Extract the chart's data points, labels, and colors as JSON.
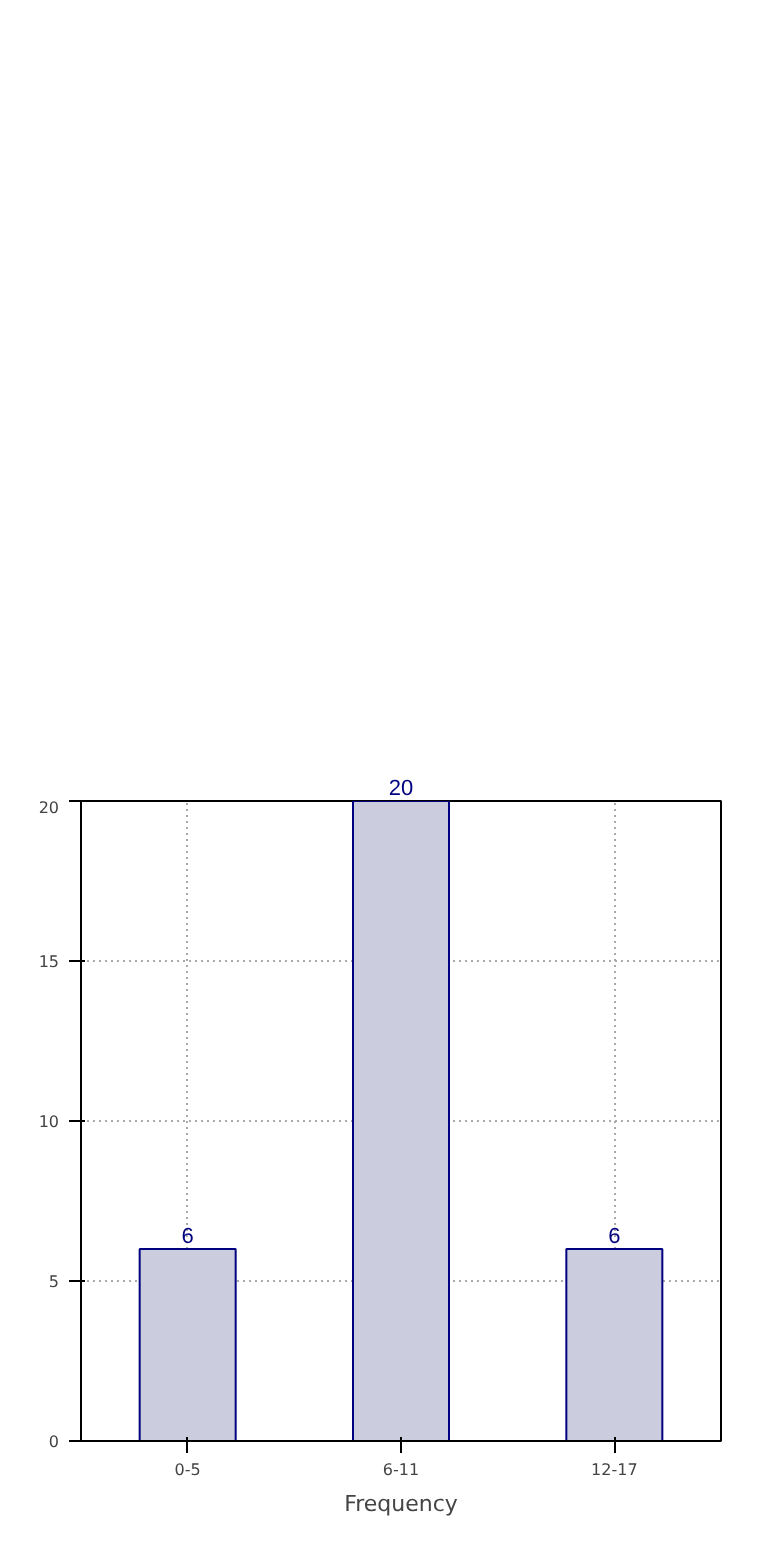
{
  "chart_data": {
    "type": "bar",
    "xlabel": "Frequency",
    "categories": [
      "0-5",
      "6-11",
      "12-17"
    ],
    "values": [
      6,
      20,
      6
    ],
    "color": "#ccccdf",
    "data_labels": true,
    "ylim": [
      0,
      20
    ],
    "yticks": [
      0,
      5,
      10,
      15,
      20
    ],
    "grid": true
  }
}
